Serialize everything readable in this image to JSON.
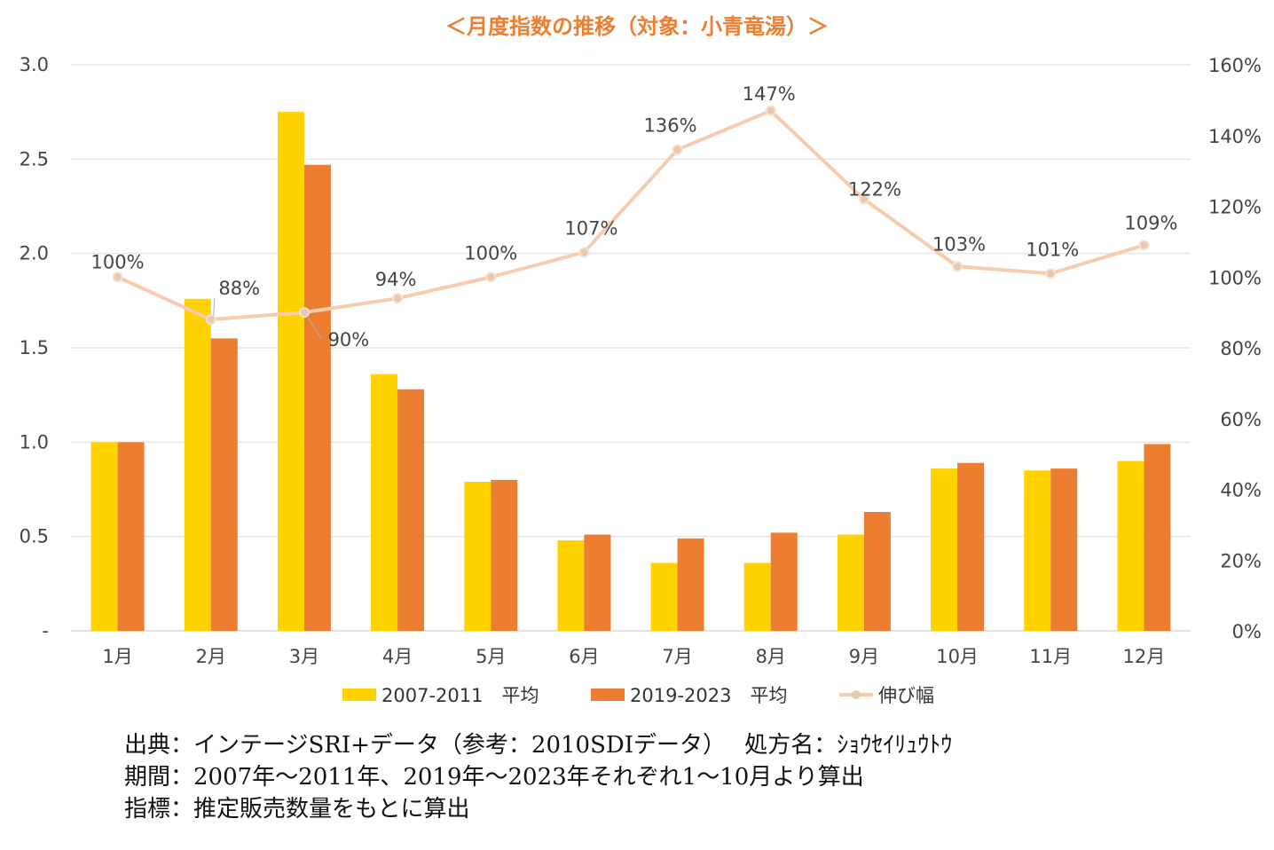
{
  "chart_data": {
    "type": "bar",
    "title": "＜月度指数の推移（対象：小青竜湯）＞",
    "categories": [
      "1月",
      "2月",
      "3月",
      "4月",
      "5月",
      "6月",
      "7月",
      "8月",
      "9月",
      "10月",
      "11月",
      "12月"
    ],
    "series": [
      {
        "name": "2007-2011　平均",
        "type": "bar",
        "axis": "left",
        "color": "#FFD200",
        "values": [
          1.0,
          1.76,
          2.75,
          1.36,
          0.79,
          0.48,
          0.36,
          0.36,
          0.51,
          0.86,
          0.85,
          0.9
        ]
      },
      {
        "name": "2019-2023　平均",
        "type": "bar",
        "axis": "left",
        "color": "#ED7D31",
        "values": [
          1.0,
          1.55,
          2.47,
          1.28,
          0.8,
          0.51,
          0.49,
          0.52,
          0.63,
          0.89,
          0.86,
          0.99
        ]
      },
      {
        "name": "伸び幅",
        "type": "line",
        "axis": "right",
        "color": "#F8CBAD",
        "values": [
          100,
          88,
          90,
          94,
          100,
          107,
          136,
          147,
          122,
          103,
          101,
          109
        ]
      }
    ],
    "data_labels": [
      "100%",
      "88%",
      "90%",
      "94%",
      "100%",
      "107%",
      "136%",
      "147%",
      "122%",
      "103%",
      "101%",
      "109%"
    ],
    "y_left": {
      "ylim": [
        0,
        3
      ],
      "ticks": [
        "-",
        "0.5",
        "1.0",
        "1.5",
        "2.0",
        "2.5",
        "3.0"
      ]
    },
    "y_right": {
      "ylim": [
        0,
        160
      ],
      "ticks": [
        "0%",
        "20%",
        "40%",
        "60%",
        "80%",
        "100%",
        "120%",
        "140%",
        "160%"
      ]
    },
    "title_color": "#ED7D31",
    "grid": true,
    "legend_position": "bottom"
  },
  "notes": {
    "source": "出典：インテージSRI+データ（参考：2010SDIデータ）　 処方名：ｼｮｳｾｲﾘｭｳﾄｳ",
    "period": "期間：2007年～2011年、2019年～2023年それぞれ1～10月より算出",
    "metric": "指標：推定販売数量をもとに算出"
  }
}
